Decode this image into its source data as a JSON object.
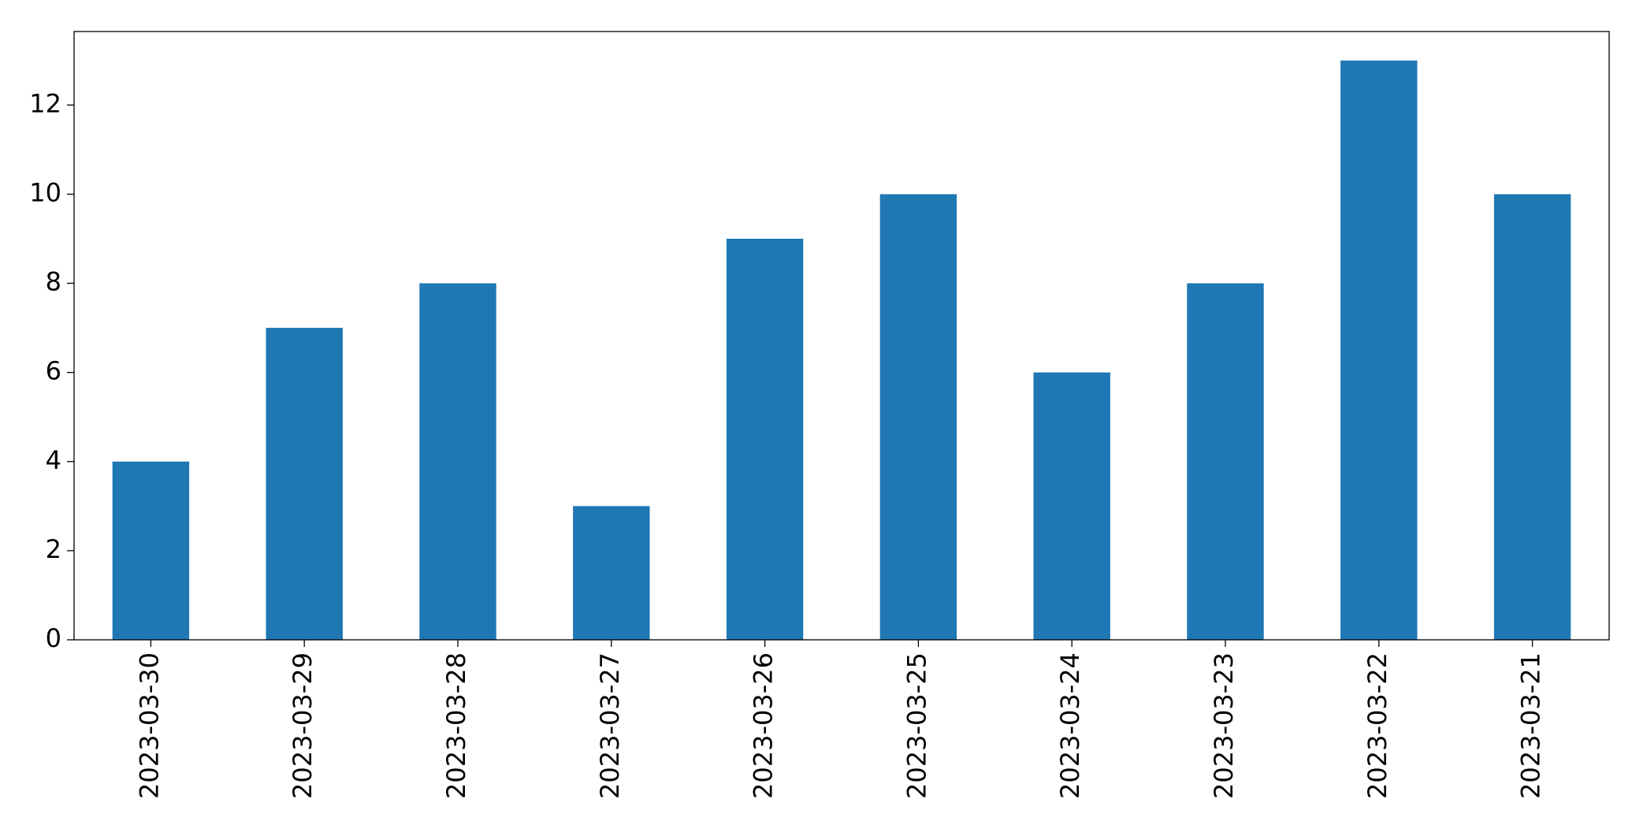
{
  "chart_data": {
    "type": "bar",
    "categories": [
      "2023-03-30",
      "2023-03-29",
      "2023-03-28",
      "2023-03-27",
      "2023-03-26",
      "2023-03-25",
      "2023-03-24",
      "2023-03-23",
      "2023-03-22",
      "2023-03-21"
    ],
    "values": [
      4,
      7,
      8,
      3,
      9,
      10,
      6,
      8,
      13,
      10
    ],
    "color": "#1f77b4",
    "ylim": [
      0,
      13.65
    ],
    "yticks": [
      0,
      2,
      4,
      6,
      8,
      10,
      12
    ],
    "grid": false
  }
}
